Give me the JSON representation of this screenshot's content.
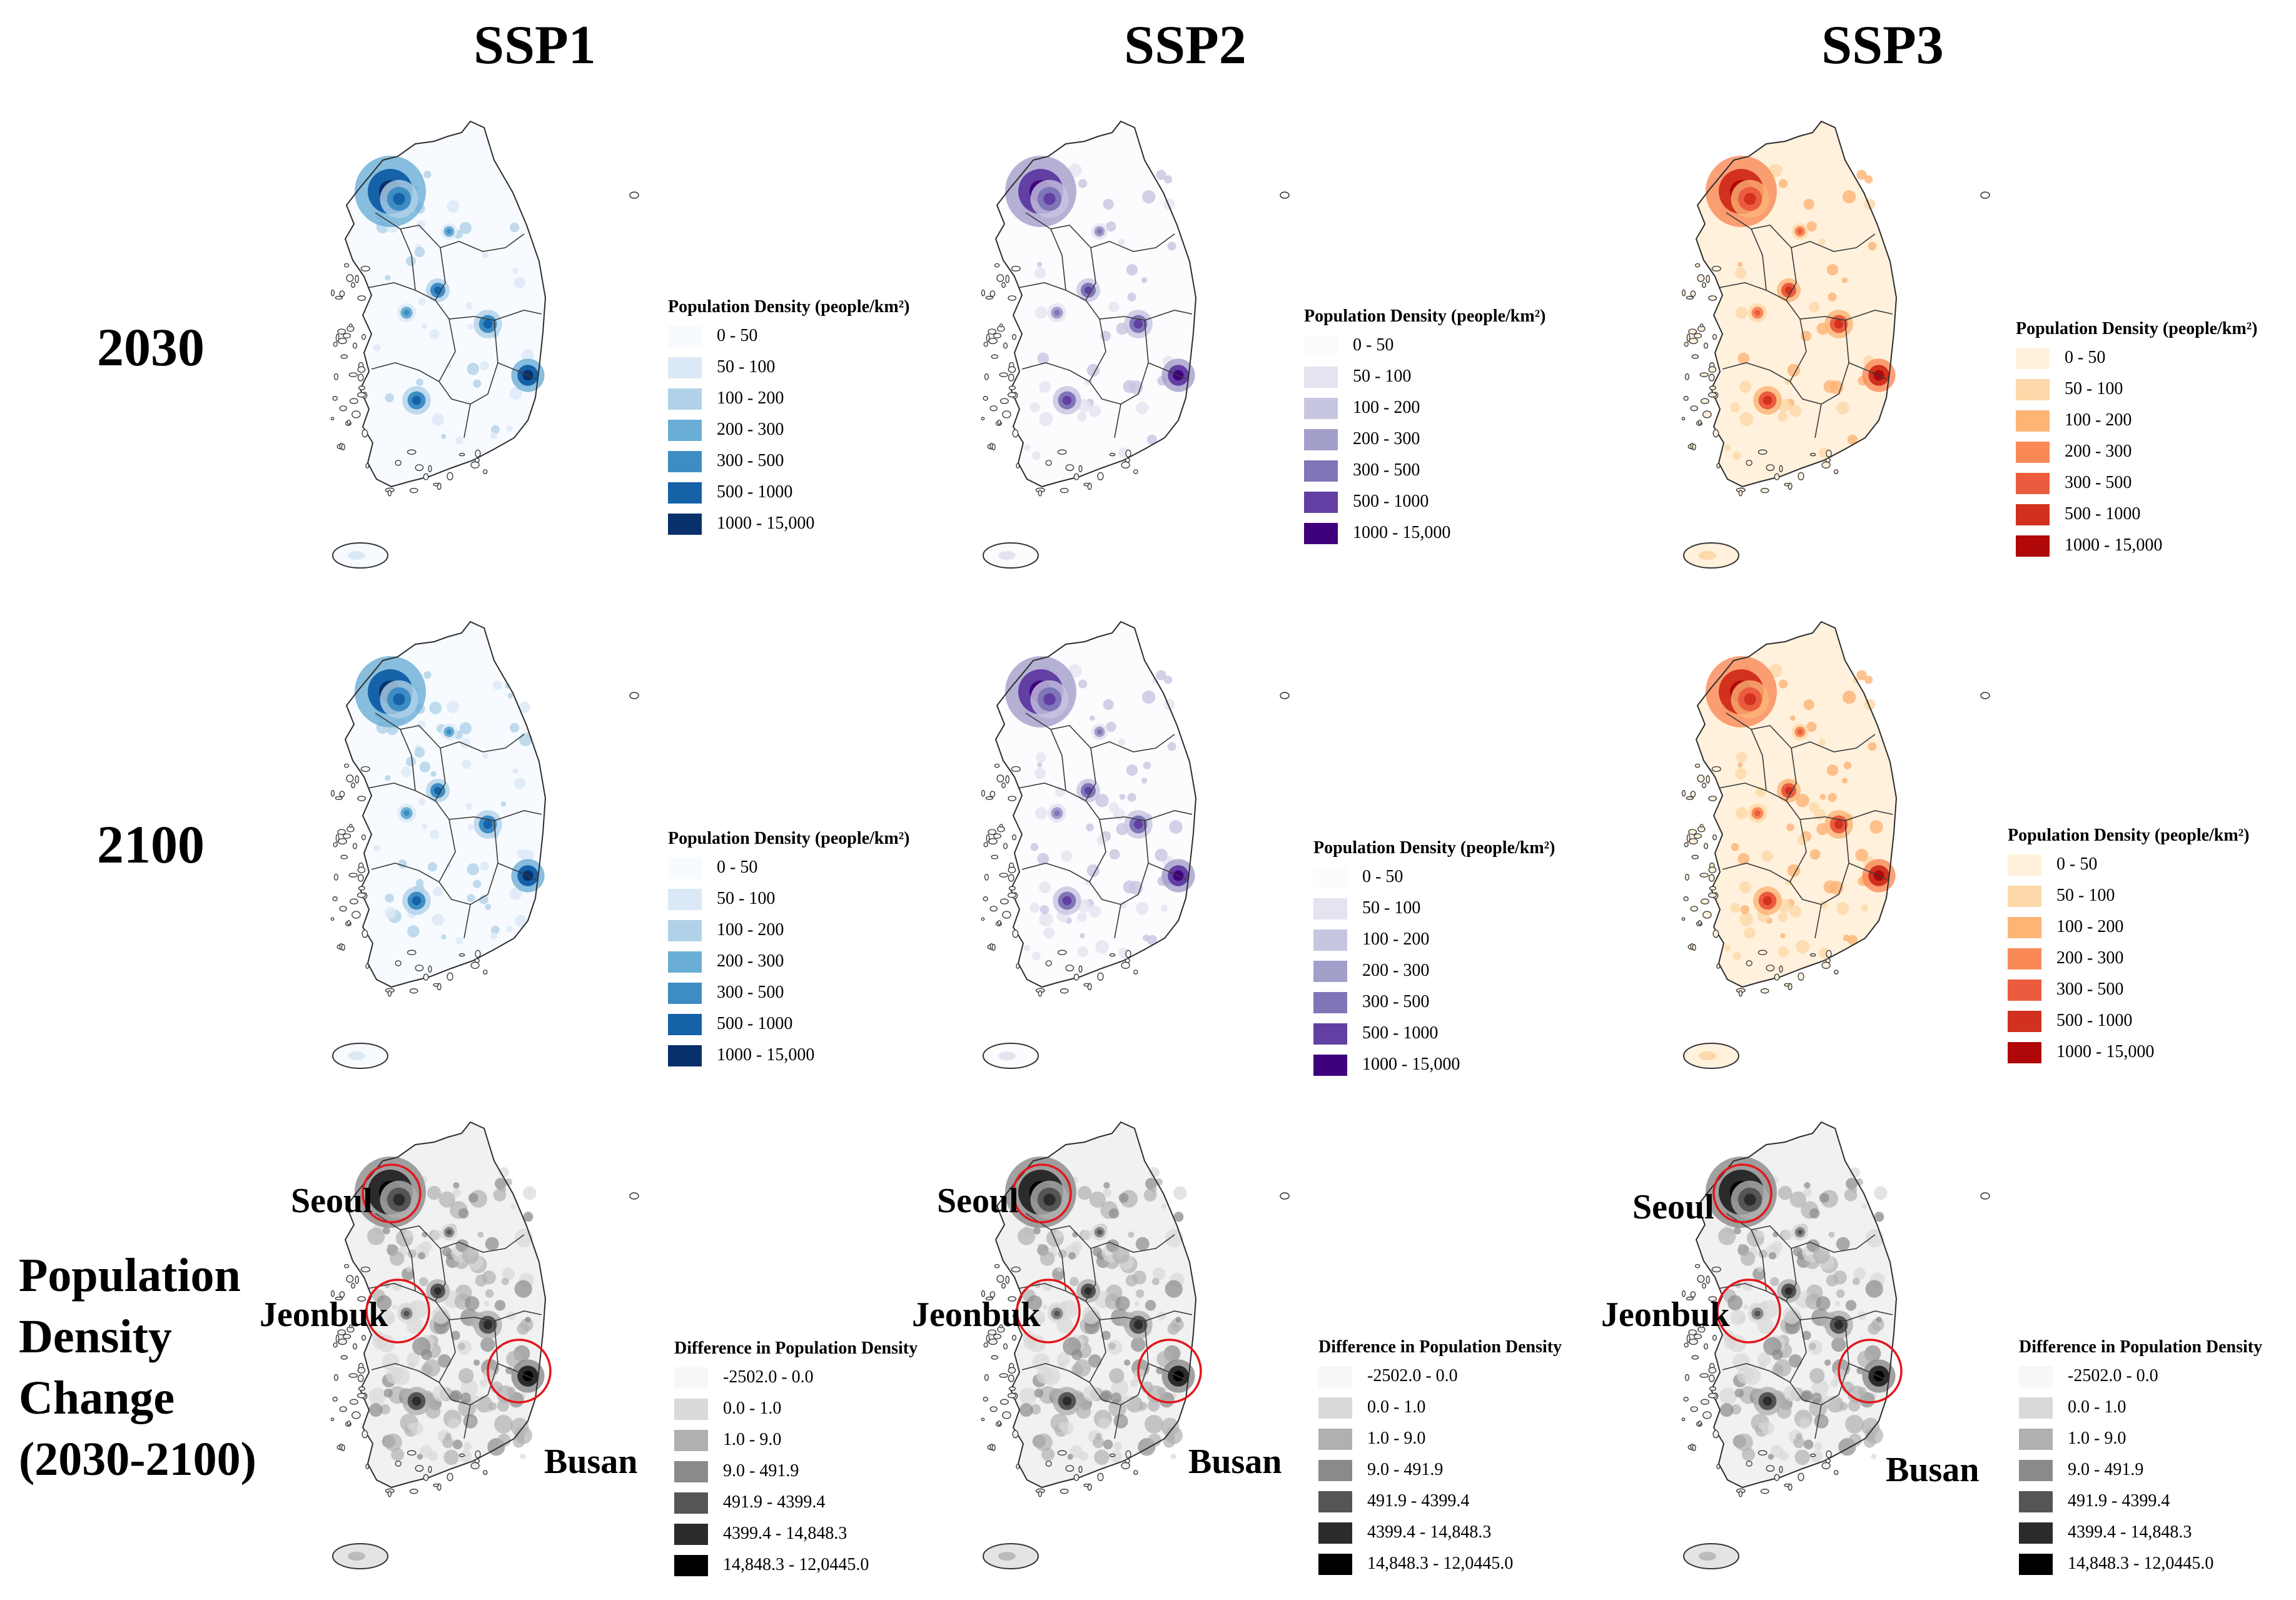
{
  "columns": [
    "SSP1",
    "SSP2",
    "SSP3"
  ],
  "rows": {
    "r2030": "2030",
    "r2100": "2100",
    "change_lines": [
      "Population",
      "Density",
      "Change",
      "(2030-2100)"
    ]
  },
  "legend_density": {
    "title": "Population Density (people/km²)",
    "classes": [
      "0 - 50",
      "50 - 100",
      "100 - 200",
      "200 - 300",
      "300 - 500",
      "500 - 1000",
      "1000  - 15,000"
    ]
  },
  "legend_difference": {
    "title": "Difference in Population Density",
    "classes": [
      "-2502.0 - 0.0",
      "0.0 - 1.0",
      "1.0 - 9.0",
      "9.0 - 491.9",
      "491.9 - 4399.4",
      "4399.4  - 14,848.3",
      "14,848.3 - 12,0445.0"
    ]
  },
  "highlight_labels": {
    "seoul": "Seoul",
    "jeonbuk": "Jeonbuk",
    "busan": "Busan"
  },
  "palettes": {
    "blue": [
      "#f7fbff",
      "#dbe9f6",
      "#b0d2e8",
      "#6aaed6",
      "#3d8dc4",
      "#1562a9",
      "#08306b"
    ],
    "purple": [
      "#fcfbfd",
      "#e4e3f0",
      "#c7c6e1",
      "#a39fcb",
      "#7f76b8",
      "#623fa3",
      "#3f007d"
    ],
    "orange": [
      "#fff1dc",
      "#fdd8a8",
      "#fdb475",
      "#f98a58",
      "#eb5c3f",
      "#d2311f",
      "#b00708"
    ],
    "grey": [
      "#f7f7f7",
      "#d9d9d9",
      "#b0b0b0",
      "#8a8a8a",
      "#555555",
      "#2b2b2b",
      "#000000"
    ],
    "highlight": "#e3161b"
  }
}
